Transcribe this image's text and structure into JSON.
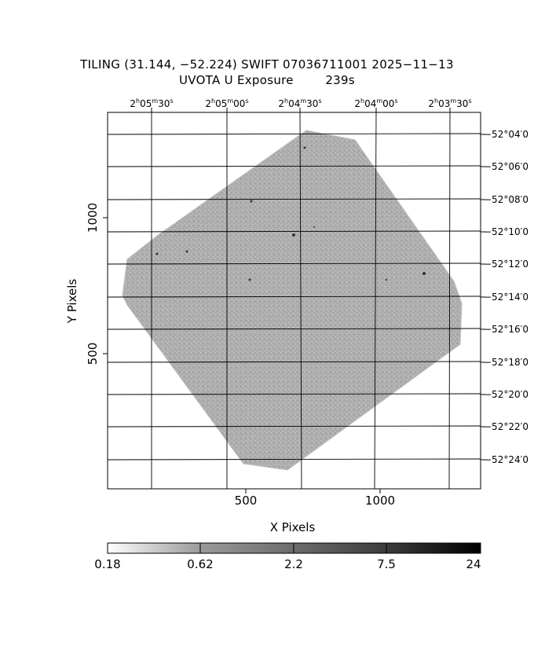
{
  "title": {
    "line1": "TILING (31.144, −52.224) SWIFT 07036711001 2025−11−13",
    "line2": "UVOTA U Exposure        239s"
  },
  "axes": {
    "xlabel": "X Pixels",
    "ylabel": "Y Pixels",
    "xticks": [
      "500",
      "1000"
    ],
    "yticks": [
      "1000",
      "500"
    ]
  },
  "ra_labels": [
    {
      "h": "2",
      "m": "05",
      "s": "30"
    },
    {
      "h": "2",
      "m": "05",
      "s": "00"
    },
    {
      "h": "2",
      "m": "04",
      "s": "30"
    },
    {
      "h": "2",
      "m": "04",
      "s": "00"
    },
    {
      "h": "2",
      "m": "03",
      "s": "30"
    }
  ],
  "dec_labels": [
    "−52°04′0",
    "−52°06′0",
    "−52°08′0",
    "−52°10′0",
    "−52°12′0",
    "−52°14′0",
    "−52°16′0",
    "−52°18′0",
    "−52°20′0",
    "−52°22′0",
    "−52°24′0"
  ],
  "colorbar": {
    "ticks": [
      "0.18",
      "0.62",
      "2.2",
      "7.5",
      "24"
    ]
  },
  "colors": {
    "image_gray": "#a9a9a9",
    "axis": "#000000",
    "background": "#ffffff"
  }
}
